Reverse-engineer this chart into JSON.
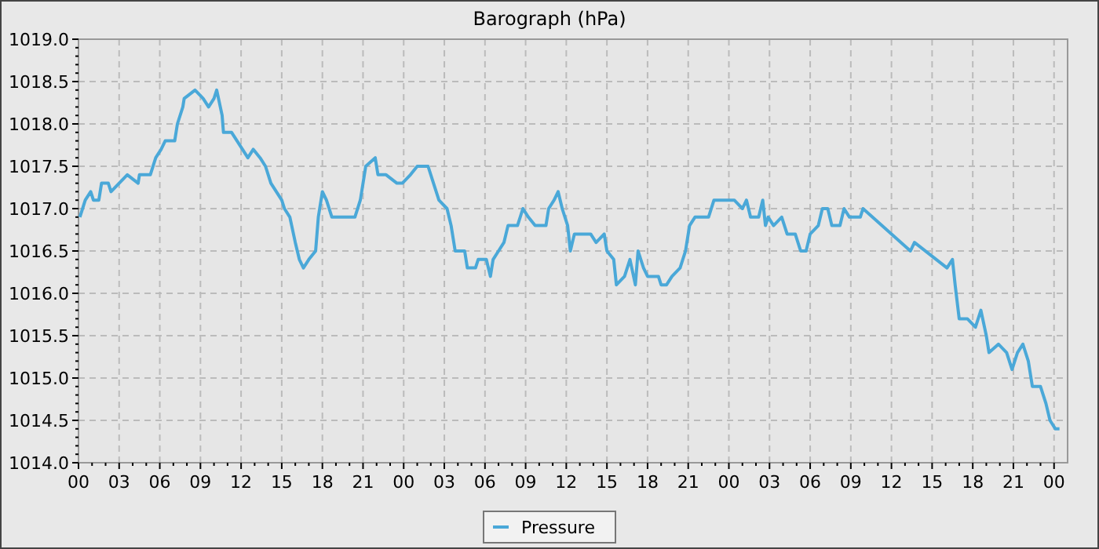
{
  "chart_data": {
    "type": "line",
    "title": "Barograph (hPa)",
    "x": [
      0.1,
      0.5,
      0.9,
      1.1,
      1.5,
      1.7,
      2.2,
      2.4,
      3.0,
      3.6,
      4.4,
      4.5,
      5.3,
      5.7,
      6.1,
      6.4,
      7.1,
      7.3,
      7.7,
      7.8,
      8.6,
      9.2,
      9.6,
      10.0,
      10.2,
      10.6,
      10.7,
      11.3,
      11.7,
      12.1,
      12.5,
      12.9,
      13.4,
      13.8,
      14.2,
      14.6,
      15.0,
      15.2,
      15.6,
      16.0,
      16.3,
      16.6,
      17.0,
      17.5,
      17.7,
      18.0,
      18.3,
      18.7,
      19.2,
      20.4,
      20.8,
      21.2,
      21.9,
      22.1,
      22.7,
      23.5,
      23.9,
      24.5,
      25.0,
      25.8,
      26.2,
      26.6,
      27.2,
      27.5,
      27.8,
      28.5,
      28.7,
      29.3,
      29.5,
      30.1,
      30.4,
      30.6,
      31.0,
      31.4,
      31.7,
      32.4,
      32.8,
      33.2,
      33.7,
      34.5,
      34.7,
      35.1,
      35.4,
      35.7,
      36.1,
      36.3,
      36.6,
      37.8,
      38.2,
      38.8,
      39.0,
      39.5,
      39.7,
      40.3,
      40.7,
      41.1,
      41.3,
      41.7,
      42.0,
      42.8,
      43.0,
      43.4,
      43.8,
      44.4,
      44.8,
      45.1,
      45.5,
      46.5,
      46.9,
      47.5,
      48.4,
      49.0,
      49.3,
      49.6,
      50.2,
      50.5,
      50.7,
      50.9,
      51.3,
      51.9,
      52.3,
      52.9,
      53.3,
      53.7,
      54.0,
      54.6,
      54.9,
      55.3,
      55.6,
      56.2,
      56.5,
      56.9,
      57.7,
      57.9,
      61.4,
      61.7,
      64.1,
      64.5,
      64.7,
      65.0,
      65.6,
      66.2,
      66.6,
      67.0,
      67.2,
      67.9,
      68.5,
      68.9,
      69.3,
      69.7,
      70.1,
      70.4,
      71.0,
      71.4,
      71.7,
      72.1,
      72.4
    ],
    "series": [
      {
        "name": "Pressure",
        "color": "#4aa8d8",
        "values": [
          1016.9,
          1017.1,
          1017.2,
          1017.1,
          1017.1,
          1017.3,
          1017.3,
          1017.2,
          1017.3,
          1017.4,
          1017.3,
          1017.4,
          1017.4,
          1017.6,
          1017.7,
          1017.8,
          1017.8,
          1018.0,
          1018.2,
          1018.3,
          1018.4,
          1018.3,
          1018.2,
          1018.3,
          1018.4,
          1018.1,
          1017.9,
          1017.9,
          1017.8,
          1017.7,
          1017.6,
          1017.7,
          1017.6,
          1017.5,
          1017.3,
          1017.2,
          1017.1,
          1017.0,
          1016.9,
          1016.6,
          1016.4,
          1016.3,
          1016.4,
          1016.5,
          1016.9,
          1017.2,
          1017.1,
          1016.9,
          1016.9,
          1016.9,
          1017.1,
          1017.5,
          1017.6,
          1017.4,
          1017.4,
          1017.3,
          1017.3,
          1017.4,
          1017.5,
          1017.5,
          1017.3,
          1017.1,
          1017.0,
          1016.8,
          1016.5,
          1016.5,
          1016.3,
          1016.3,
          1016.4,
          1016.4,
          1016.2,
          1016.4,
          1016.5,
          1016.6,
          1016.8,
          1016.8,
          1017.0,
          1016.9,
          1016.8,
          1016.8,
          1017.0,
          1017.1,
          1017.2,
          1017.0,
          1016.8,
          1016.5,
          1016.7,
          1016.7,
          1016.6,
          1016.7,
          1016.5,
          1016.4,
          1016.1,
          1016.2,
          1016.4,
          1016.1,
          1016.5,
          1016.3,
          1016.2,
          1016.2,
          1016.1,
          1016.1,
          1016.2,
          1016.3,
          1016.5,
          1016.8,
          1016.9,
          1016.9,
          1017.1,
          1017.1,
          1017.1,
          1017.0,
          1017.1,
          1016.9,
          1016.9,
          1017.1,
          1016.8,
          1016.9,
          1016.8,
          1016.9,
          1016.7,
          1016.7,
          1016.5,
          1016.5,
          1016.7,
          1016.8,
          1017.0,
          1017.0,
          1016.8,
          1016.8,
          1017.0,
          1016.9,
          1016.9,
          1017.0,
          1016.5,
          1016.6,
          1016.3,
          1016.4,
          1016.1,
          1015.7,
          1015.7,
          1015.6,
          1015.8,
          1015.5,
          1015.3,
          1015.4,
          1015.3,
          1015.1,
          1015.3,
          1015.4,
          1015.2,
          1014.9,
          1014.9,
          1014.7,
          1014.5,
          1014.4,
          1014.4
        ]
      }
    ],
    "xlim": [
      0,
      73
    ],
    "xticks": [
      {
        "value": 0,
        "label": "00"
      },
      {
        "value": 1,
        "label": null
      },
      {
        "value": 2,
        "label": null
      },
      {
        "value": 3,
        "label": "03"
      },
      {
        "value": 4,
        "label": null
      },
      {
        "value": 5,
        "label": null
      },
      {
        "value": 6,
        "label": "06"
      },
      {
        "value": 7,
        "label": null
      },
      {
        "value": 8,
        "label": null
      },
      {
        "value": 9,
        "label": "09"
      },
      {
        "value": 10,
        "label": null
      },
      {
        "value": 11,
        "label": null
      },
      {
        "value": 12,
        "label": "12"
      },
      {
        "value": 13,
        "label": null
      },
      {
        "value": 14,
        "label": null
      },
      {
        "value": 15,
        "label": "15"
      },
      {
        "value": 16,
        "label": null
      },
      {
        "value": 17,
        "label": null
      },
      {
        "value": 18,
        "label": "18"
      },
      {
        "value": 19,
        "label": null
      },
      {
        "value": 20,
        "label": null
      },
      {
        "value": 21,
        "label": "21"
      },
      {
        "value": 22,
        "label": null
      },
      {
        "value": 23,
        "label": null
      },
      {
        "value": 24,
        "label": "00"
      },
      {
        "value": 25,
        "label": null
      },
      {
        "value": 26,
        "label": null
      },
      {
        "value": 27,
        "label": "03"
      },
      {
        "value": 28,
        "label": null
      },
      {
        "value": 29,
        "label": null
      },
      {
        "value": 30,
        "label": "06"
      },
      {
        "value": 31,
        "label": null
      },
      {
        "value": 32,
        "label": null
      },
      {
        "value": 33,
        "label": "09"
      },
      {
        "value": 34,
        "label": null
      },
      {
        "value": 35,
        "label": null
      },
      {
        "value": 36,
        "label": "12"
      },
      {
        "value": 37,
        "label": null
      },
      {
        "value": 38,
        "label": null
      },
      {
        "value": 39,
        "label": "15"
      },
      {
        "value": 40,
        "label": null
      },
      {
        "value": 41,
        "label": null
      },
      {
        "value": 42,
        "label": "18"
      },
      {
        "value": 43,
        "label": null
      },
      {
        "value": 44,
        "label": null
      },
      {
        "value": 45,
        "label": "21"
      },
      {
        "value": 46,
        "label": null
      },
      {
        "value": 47,
        "label": null
      },
      {
        "value": 48,
        "label": "00"
      },
      {
        "value": 49,
        "label": null
      },
      {
        "value": 50,
        "label": null
      },
      {
        "value": 51,
        "label": "03"
      },
      {
        "value": 52,
        "label": null
      },
      {
        "value": 53,
        "label": null
      },
      {
        "value": 54,
        "label": "06"
      },
      {
        "value": 55,
        "label": null
      },
      {
        "value": 56,
        "label": null
      },
      {
        "value": 57,
        "label": "09"
      },
      {
        "value": 58,
        "label": null
      },
      {
        "value": 59,
        "label": null
      },
      {
        "value": 60,
        "label": "12"
      },
      {
        "value": 61,
        "label": null
      },
      {
        "value": 62,
        "label": null
      },
      {
        "value": 63,
        "label": "15"
      },
      {
        "value": 64,
        "label": null
      },
      {
        "value": 65,
        "label": null
      },
      {
        "value": 66,
        "label": "18"
      },
      {
        "value": 67,
        "label": null
      },
      {
        "value": 68,
        "label": null
      },
      {
        "value": 69,
        "label": "21"
      },
      {
        "value": 70,
        "label": null
      },
      {
        "value": 71,
        "label": null
      },
      {
        "value": 72,
        "label": "00"
      }
    ],
    "ylim": [
      1014,
      1019
    ],
    "yticks": [
      {
        "value": 1014,
        "label": "1014.0"
      },
      {
        "value": 1014.1,
        "label": null
      },
      {
        "value": 1014.2,
        "label": null
      },
      {
        "value": 1014.3,
        "label": null
      },
      {
        "value": 1014.4,
        "label": null
      },
      {
        "value": 1014.5,
        "label": "1014.5"
      },
      {
        "value": 1014.6,
        "label": null
      },
      {
        "value": 1014.7,
        "label": null
      },
      {
        "value": 1014.8,
        "label": null
      },
      {
        "value": 1014.9,
        "label": null
      },
      {
        "value": 1015,
        "label": "1015.0"
      },
      {
        "value": 1015.1,
        "label": null
      },
      {
        "value": 1015.2,
        "label": null
      },
      {
        "value": 1015.3,
        "label": null
      },
      {
        "value": 1015.4,
        "label": null
      },
      {
        "value": 1015.5,
        "label": "1015.5"
      },
      {
        "value": 1015.6,
        "label": null
      },
      {
        "value": 1015.7,
        "label": null
      },
      {
        "value": 1015.8,
        "label": null
      },
      {
        "value": 1015.9,
        "label": null
      },
      {
        "value": 1016,
        "label": "1016.0"
      },
      {
        "value": 1016.1,
        "label": null
      },
      {
        "value": 1016.2,
        "label": null
      },
      {
        "value": 1016.3,
        "label": null
      },
      {
        "value": 1016.4,
        "label": null
      },
      {
        "value": 1016.5,
        "label": "1016.5"
      },
      {
        "value": 1016.6,
        "label": null
      },
      {
        "value": 1016.7,
        "label": null
      },
      {
        "value": 1016.8,
        "label": null
      },
      {
        "value": 1016.9,
        "label": null
      },
      {
        "value": 1017,
        "label": "1017.0"
      },
      {
        "value": 1017.1,
        "label": null
      },
      {
        "value": 1017.2,
        "label": null
      },
      {
        "value": 1017.3,
        "label": null
      },
      {
        "value": 1017.4,
        "label": null
      },
      {
        "value": 1017.5,
        "label": "1017.5"
      },
      {
        "value": 1017.6,
        "label": null
      },
      {
        "value": 1017.7,
        "label": null
      },
      {
        "value": 1017.8,
        "label": null
      },
      {
        "value": 1017.9,
        "label": null
      },
      {
        "value": 1018,
        "label": "1018.0"
      },
      {
        "value": 1018.1,
        "label": null
      },
      {
        "value": 1018.2,
        "label": null
      },
      {
        "value": 1018.3,
        "label": null
      },
      {
        "value": 1018.4,
        "label": null
      },
      {
        "value": 1018.5,
        "label": "1018.5"
      },
      {
        "value": 1018.6,
        "label": null
      },
      {
        "value": 1018.7,
        "label": null
      },
      {
        "value": 1018.8,
        "label": null
      },
      {
        "value": 1018.9,
        "label": null
      },
      {
        "value": 1019,
        "label": "1019.0"
      }
    ],
    "grid": true,
    "legend": "bottom",
    "line_style": "solid",
    "marker": "none"
  }
}
